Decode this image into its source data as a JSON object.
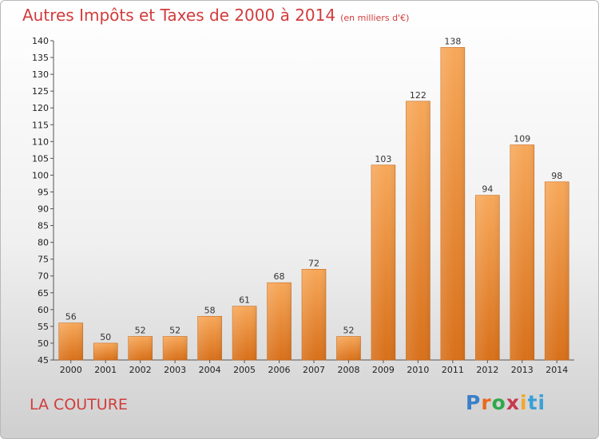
{
  "header": {
    "title": "Autres Impôts et Taxes de 2000 à 2014",
    "unit": "(en milliers d'€)"
  },
  "commune": "LA COUTURE",
  "logo": {
    "letters": [
      "P",
      "r",
      "o",
      "x",
      "i",
      "ti"
    ]
  },
  "chart_data": {
    "type": "bar",
    "title": "Autres Impôts et Taxes de 2000 à 2014",
    "subtitle": "(en milliers d'€)",
    "categories": [
      "2000",
      "2001",
      "2002",
      "2003",
      "2004",
      "2005",
      "2006",
      "2007",
      "2008",
      "2009",
      "2010",
      "2011",
      "2012",
      "2013",
      "2014"
    ],
    "values": [
      56,
      50,
      52,
      52,
      58,
      61,
      68,
      72,
      52,
      103,
      122,
      138,
      94,
      109,
      98
    ],
    "ylim": [
      45,
      140
    ],
    "yticks": [
      45,
      50,
      55,
      60,
      65,
      70,
      75,
      80,
      85,
      90,
      95,
      100,
      105,
      110,
      115,
      120,
      125,
      130,
      135,
      140
    ],
    "grid": false,
    "bar_color": "#f0902e",
    "xlabel": "",
    "ylabel": ""
  }
}
